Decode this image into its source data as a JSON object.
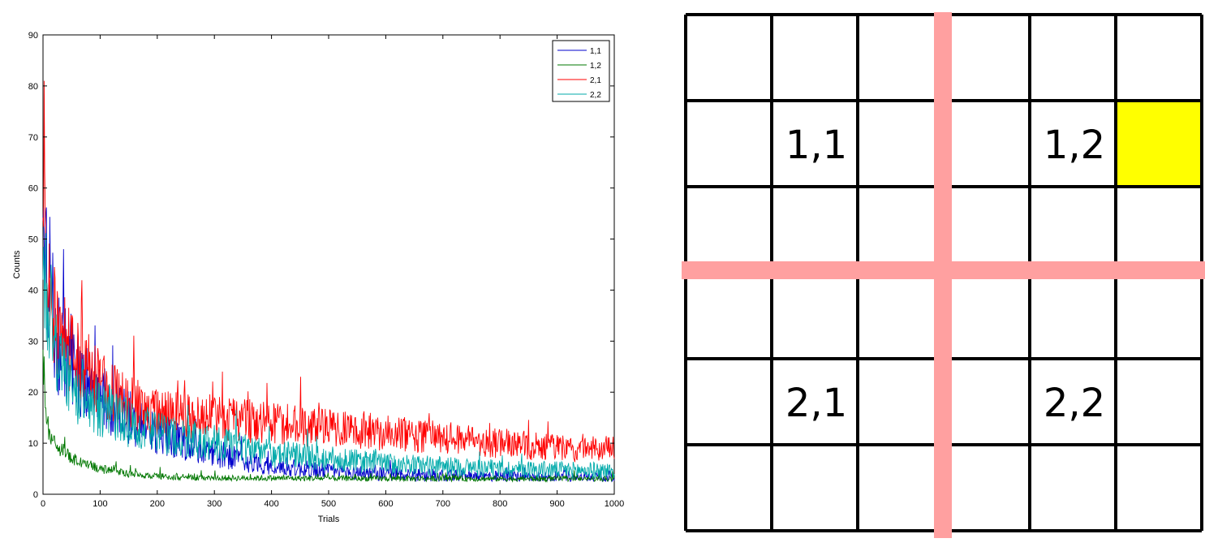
{
  "chart_data": {
    "type": "line",
    "xlabel": "Trials",
    "ylabel": "Counts",
    "xlim": [
      0,
      1000
    ],
    "ylim": [
      0,
      90
    ],
    "xticks": [
      0,
      100,
      200,
      300,
      400,
      500,
      600,
      700,
      800,
      900,
      1000
    ],
    "yticks": [
      0,
      10,
      20,
      30,
      40,
      50,
      60,
      70,
      80,
      90
    ],
    "grid": false,
    "legend_position": "top-right",
    "series": [
      {
        "name": "1,1",
        "color": "#0000cc",
        "start": 45,
        "end": 3.5,
        "decay": 160,
        "noise": 0.35,
        "peak_first": 49,
        "trend": [
          [
            0,
            46
          ],
          [
            25,
            30
          ],
          [
            50,
            25
          ],
          [
            100,
            19
          ],
          [
            150,
            15
          ],
          [
            200,
            12
          ],
          [
            300,
            8
          ],
          [
            400,
            5.5
          ],
          [
            500,
            4.5
          ],
          [
            600,
            4
          ],
          [
            700,
            3.6
          ],
          [
            800,
            3.4
          ],
          [
            900,
            3.3
          ],
          [
            1000,
            3.2
          ]
        ]
      },
      {
        "name": "1,2",
        "color": "#007700",
        "start": 27,
        "end": 3.0,
        "decay": 20,
        "noise": 0.18,
        "peak_first": 27,
        "trend": [
          [
            0,
            27
          ],
          [
            5,
            15
          ],
          [
            15,
            11
          ],
          [
            30,
            9
          ],
          [
            50,
            7
          ],
          [
            100,
            5
          ],
          [
            150,
            4
          ],
          [
            200,
            3.5
          ],
          [
            300,
            3.2
          ],
          [
            500,
            3.1
          ],
          [
            1000,
            3.0
          ]
        ]
      },
      {
        "name": "2,1",
        "color": "#ff0000",
        "start": 53,
        "end": 8.5,
        "decay": 120,
        "noise": 0.3,
        "peak_first": 81,
        "trend": [
          [
            0,
            53
          ],
          [
            10,
            40
          ],
          [
            25,
            32
          ],
          [
            50,
            28
          ],
          [
            100,
            22
          ],
          [
            150,
            18
          ],
          [
            200,
            16
          ],
          [
            300,
            15
          ],
          [
            400,
            14
          ],
          [
            500,
            13
          ],
          [
            600,
            12
          ],
          [
            700,
            11
          ],
          [
            800,
            10
          ],
          [
            900,
            9
          ],
          [
            1000,
            9
          ]
        ]
      },
      {
        "name": "2,2",
        "color": "#00aaaa",
        "start": 44,
        "end": 4.5,
        "decay": 150,
        "noise": 0.35,
        "peak_first": 44,
        "trend": [
          [
            0,
            44
          ],
          [
            25,
            25
          ],
          [
            50,
            22
          ],
          [
            100,
            17
          ],
          [
            150,
            14
          ],
          [
            200,
            12
          ],
          [
            300,
            10
          ],
          [
            400,
            8
          ],
          [
            500,
            7
          ],
          [
            600,
            6
          ],
          [
            700,
            5.5
          ],
          [
            800,
            5
          ],
          [
            900,
            4.8
          ],
          [
            1000,
            4.6
          ]
        ]
      }
    ]
  },
  "grid_figure": {
    "rows": 6,
    "cols": 6,
    "highlight_cell": {
      "row": 1,
      "col": 5,
      "color": "#ffff00"
    },
    "divider_color": "#ffa0a0",
    "cell_labels": [
      {
        "row": 1,
        "col": 1,
        "text": "1,1"
      },
      {
        "row": 1,
        "col": 4,
        "text": "1,2"
      },
      {
        "row": 4,
        "col": 1,
        "text": "2,1"
      },
      {
        "row": 4,
        "col": 4,
        "text": "2,2"
      }
    ]
  }
}
